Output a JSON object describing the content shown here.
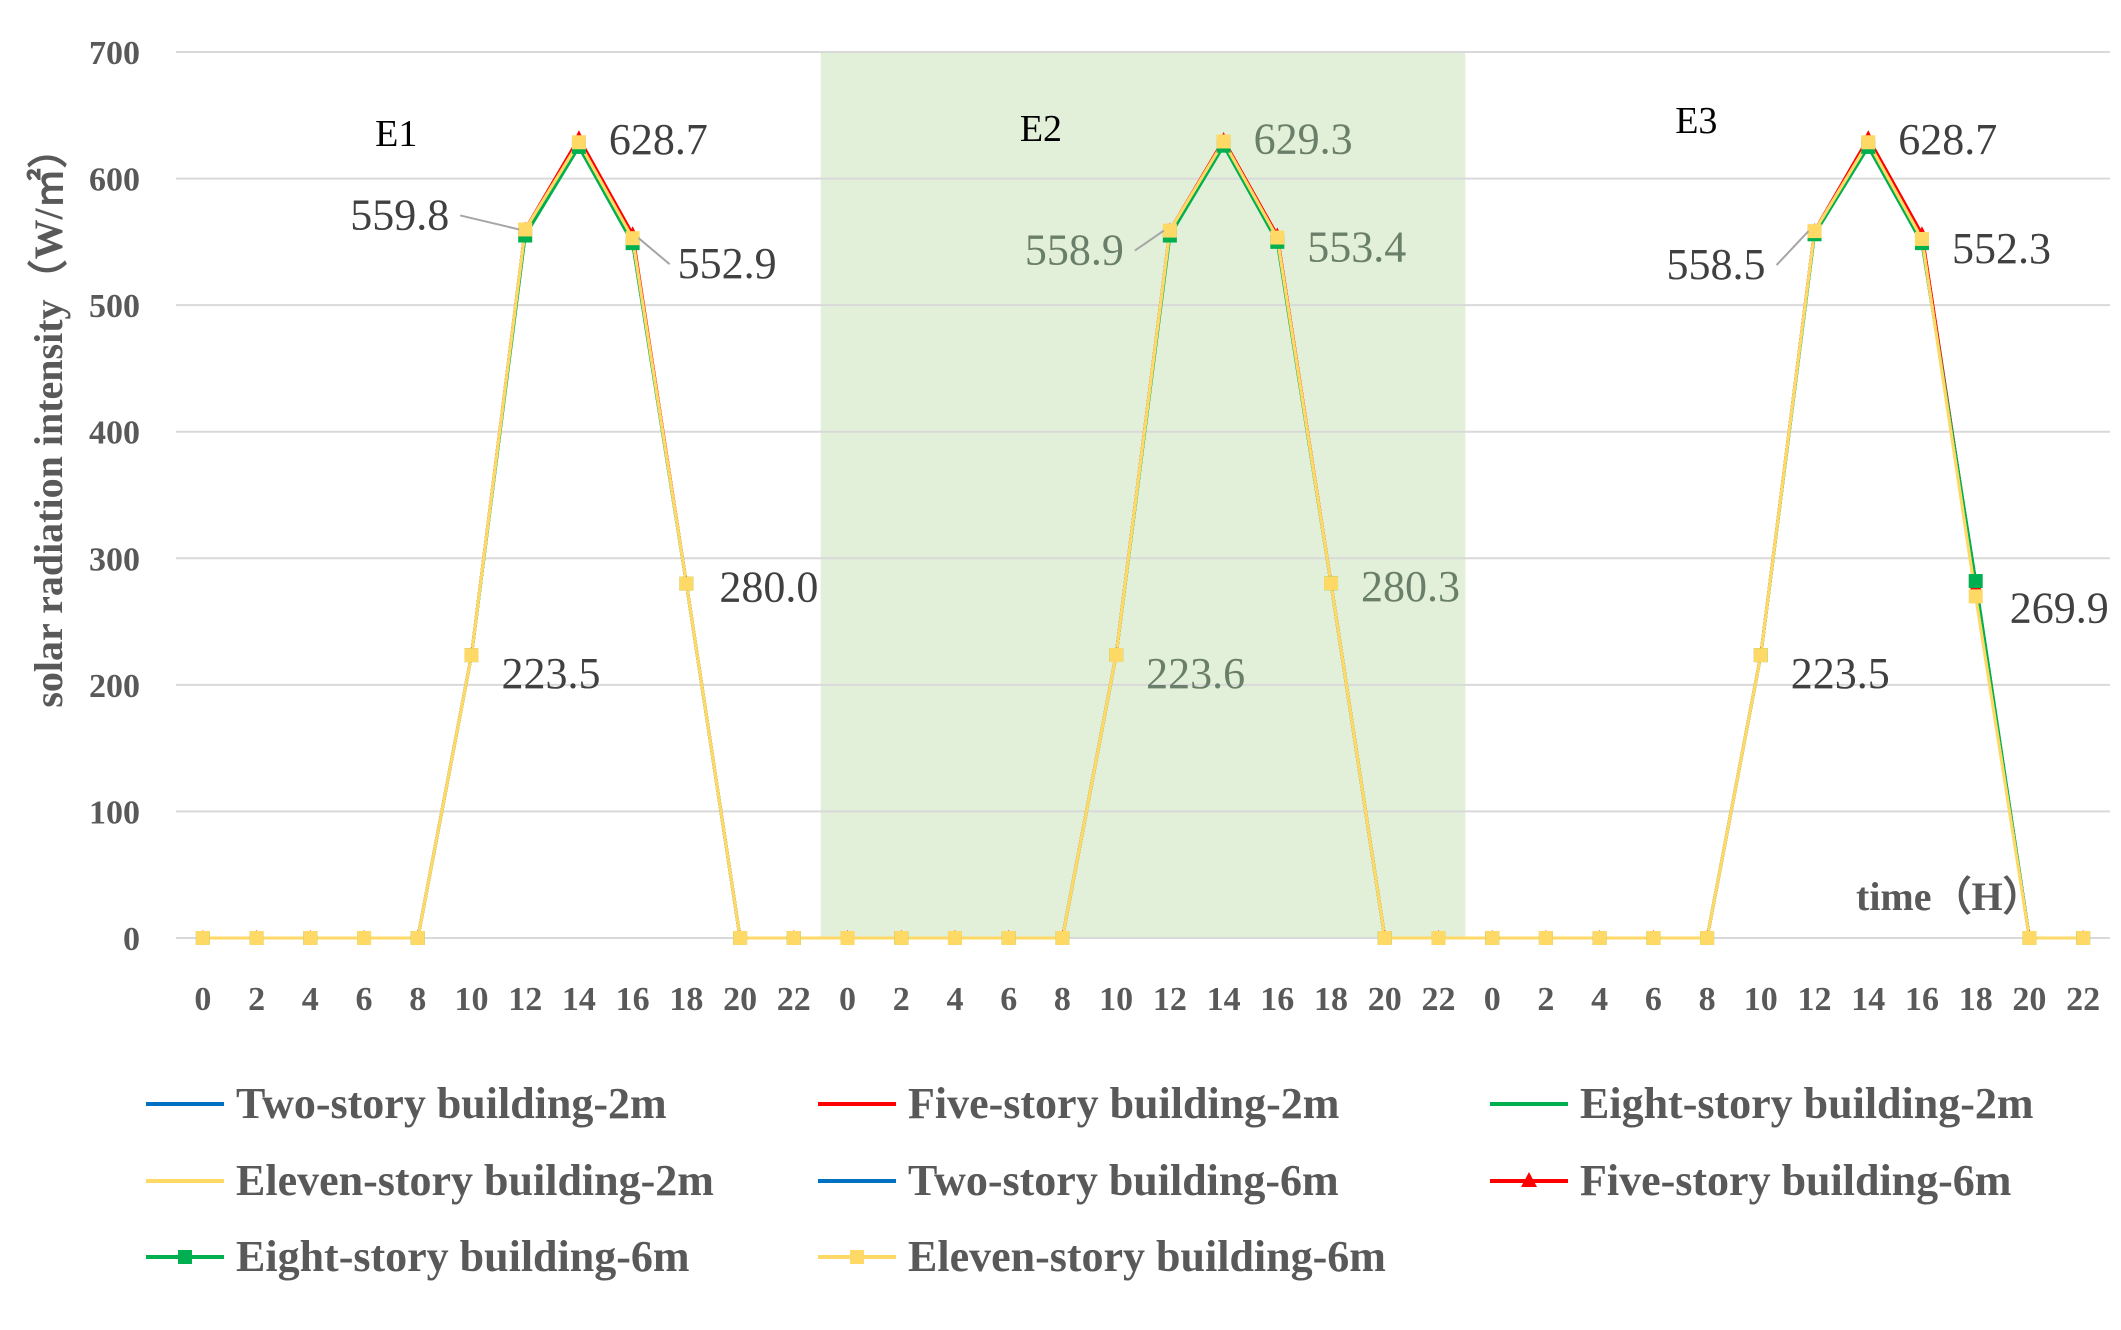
{
  "chart_data": {
    "type": "line",
    "title": "",
    "xlabel": "time（H）",
    "ylabel": "solar radiation intensity（W/㎡）",
    "ylim": [
      0,
      700
    ],
    "y_ticks": [
      "0",
      "100",
      "200",
      "300",
      "400",
      "500",
      "600",
      "700"
    ],
    "x_tick_labels": [
      "0",
      "2",
      "4",
      "6",
      "8",
      "10",
      "12",
      "14",
      "16",
      "18",
      "20",
      "22",
      "0",
      "2",
      "4",
      "6",
      "8",
      "10",
      "12",
      "14",
      "16",
      "18",
      "20",
      "22",
      "0",
      "2",
      "4",
      "6",
      "8",
      "10",
      "12",
      "14",
      "16",
      "18",
      "20",
      "22"
    ],
    "grid": true,
    "legend_position": "bottom",
    "panels": [
      {
        "label": "E1",
        "shaded": false,
        "start_index": 0,
        "end_index": 12
      },
      {
        "label": "E2",
        "shaded": true,
        "start_index": 12,
        "end_index": 24
      },
      {
        "label": "E3",
        "shaded": false,
        "start_index": 24,
        "end_index": 36
      }
    ],
    "series": [
      {
        "name": "Two-story building-2m",
        "color": "#0070c0",
        "marker": "none",
        "values": [
          0,
          0,
          0,
          0,
          0,
          223.5,
          559.8,
          628.7,
          552.9,
          280.0,
          0,
          0,
          0,
          0,
          0,
          0,
          0,
          223.6,
          558.9,
          629.3,
          553.4,
          280.3,
          0,
          0,
          0,
          0,
          0,
          0,
          0,
          223.5,
          558.5,
          628.7,
          552.3,
          280.0,
          0,
          0
        ]
      },
      {
        "name": "Five-story building-2m",
        "color": "#ff0000",
        "marker": "none",
        "values": [
          0,
          0,
          0,
          0,
          0,
          223.5,
          559.8,
          632.0,
          556.0,
          280.0,
          0,
          0,
          0,
          0,
          0,
          0,
          0,
          223.6,
          558.9,
          630.5,
          555.0,
          280.3,
          0,
          0,
          0,
          0,
          0,
          0,
          0,
          223.5,
          558.5,
          632.0,
          556.0,
          278.0,
          0,
          0
        ]
      },
      {
        "name": "Eight-story building-2m",
        "color": "#00b050",
        "marker": "none",
        "values": [
          0,
          0,
          0,
          0,
          0,
          223.5,
          555.0,
          625.0,
          549.0,
          280.0,
          0,
          0,
          0,
          0,
          0,
          0,
          0,
          223.6,
          555.0,
          626.0,
          550.0,
          280.3,
          0,
          0,
          0,
          0,
          0,
          0,
          0,
          223.5,
          556.0,
          625.0,
          549.0,
          282.0,
          0,
          0
        ]
      },
      {
        "name": "Eleven-story building-2m",
        "color": "#ffd966",
        "marker": "none",
        "values": [
          0,
          0,
          0,
          0,
          0,
          223.5,
          559.8,
          628.7,
          552.9,
          280.0,
          0,
          0,
          0,
          0,
          0,
          0,
          0,
          223.6,
          558.9,
          629.3,
          553.4,
          280.3,
          0,
          0,
          0,
          0,
          0,
          0,
          0,
          223.5,
          558.5,
          628.7,
          552.3,
          269.9,
          0,
          0
        ]
      },
      {
        "name": "Two-story building-6m",
        "color": "#0070c0",
        "marker": "none",
        "values": [
          0,
          0,
          0,
          0,
          0,
          223.5,
          559.8,
          628.7,
          552.9,
          280.0,
          0,
          0,
          0,
          0,
          0,
          0,
          0,
          223.6,
          558.9,
          629.3,
          553.4,
          280.3,
          0,
          0,
          0,
          0,
          0,
          0,
          0,
          223.5,
          558.5,
          628.7,
          552.3,
          280.0,
          0,
          0
        ]
      },
      {
        "name": "Five-story building-6m",
        "color": "#ff0000",
        "marker": "triangle",
        "values": [
          0,
          0,
          0,
          0,
          0,
          223.5,
          559.8,
          632.0,
          556.0,
          280.0,
          0,
          0,
          0,
          0,
          0,
          0,
          0,
          223.6,
          558.9,
          630.5,
          555.0,
          280.3,
          0,
          0,
          0,
          0,
          0,
          0,
          0,
          223.5,
          558.5,
          632.0,
          556.0,
          278.0,
          0,
          0
        ]
      },
      {
        "name": "Eight-story building-6m",
        "color": "#00b050",
        "marker": "square",
        "values": [
          0,
          0,
          0,
          0,
          0,
          223.5,
          555.0,
          625.0,
          549.0,
          280.0,
          0,
          0,
          0,
          0,
          0,
          0,
          0,
          223.6,
          555.0,
          626.0,
          550.0,
          280.3,
          0,
          0,
          0,
          0,
          0,
          0,
          0,
          223.5,
          556.0,
          625.0,
          549.0,
          282.0,
          0,
          0
        ]
      },
      {
        "name": "Eleven-story building-6m",
        "color": "#ffd966",
        "marker": "square",
        "values": [
          0,
          0,
          0,
          0,
          0,
          223.5,
          559.8,
          628.7,
          552.9,
          280.0,
          0,
          0,
          0,
          0,
          0,
          0,
          0,
          223.6,
          558.9,
          629.3,
          553.4,
          280.3,
          0,
          0,
          0,
          0,
          0,
          0,
          0,
          223.5,
          558.5,
          628.7,
          552.3,
          269.9,
          0,
          0
        ]
      }
    ],
    "annotations": [
      {
        "text": "559.8",
        "index": 6,
        "value": 559.8,
        "panel": "E1"
      },
      {
        "text": "628.7",
        "index": 7,
        "value": 628.7,
        "panel": "E1"
      },
      {
        "text": "552.9",
        "index": 8,
        "value": 552.9,
        "panel": "E1"
      },
      {
        "text": "280.0",
        "index": 9,
        "value": 280.0,
        "panel": "E1"
      },
      {
        "text": "223.5",
        "index": 5,
        "value": 223.5,
        "panel": "E1"
      },
      {
        "text": "558.9",
        "index": 18,
        "value": 558.9,
        "panel": "E2"
      },
      {
        "text": "629.3",
        "index": 19,
        "value": 629.3,
        "panel": "E2"
      },
      {
        "text": "553.4",
        "index": 20,
        "value": 553.4,
        "panel": "E2"
      },
      {
        "text": "280.3",
        "index": 21,
        "value": 280.3,
        "panel": "E2"
      },
      {
        "text": "223.6",
        "index": 17,
        "value": 223.6,
        "panel": "E2"
      },
      {
        "text": "558.5",
        "index": 30,
        "value": 558.5,
        "panel": "E3"
      },
      {
        "text": "628.7",
        "index": 31,
        "value": 628.7,
        "panel": "E3"
      },
      {
        "text": "552.3",
        "index": 32,
        "value": 552.3,
        "panel": "E3"
      },
      {
        "text": "269.9",
        "index": 33,
        "value": 269.9,
        "panel": "E3"
      },
      {
        "text": "223.5",
        "index": 29,
        "value": 223.5,
        "panel": "E3"
      }
    ],
    "colors": {
      "gridline": "#d9d9d9",
      "shade": "#e2f0d9",
      "axis_text": "#595959"
    }
  }
}
